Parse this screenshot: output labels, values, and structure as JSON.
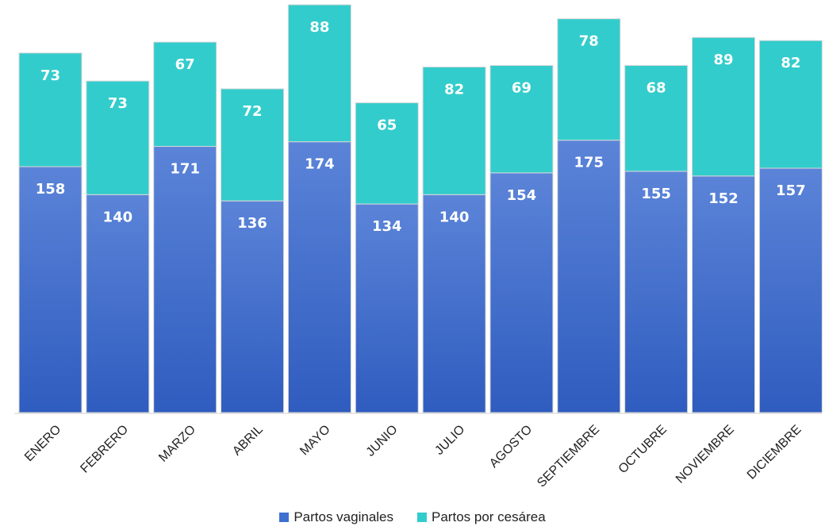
{
  "chart_data": {
    "type": "bar",
    "stacked": true,
    "categories": [
      "ENERO",
      "FEBRERO",
      "MARZO",
      "ABRIL",
      "MAYO",
      "JUNIO",
      "JULIO",
      "AGOSTO",
      "SEPTIEMBRE",
      "OCTUBRE",
      "NOVIEMBRE",
      "DICIEMBRE"
    ],
    "series": [
      {
        "name": "Partos vaginales",
        "values": [
          158,
          140,
          171,
          136,
          174,
          134,
          140,
          154,
          175,
          155,
          152,
          157
        ],
        "color": "#3f6fd0"
      },
      {
        "name": "Partos por cesárea",
        "values": [
          73,
          73,
          67,
          72,
          88,
          65,
          82,
          69,
          78,
          68,
          89,
          82
        ],
        "color": "#33cccc"
      }
    ],
    "ylim": [
      0,
      262
    ],
    "grid": false,
    "legend_position": "bottom"
  }
}
